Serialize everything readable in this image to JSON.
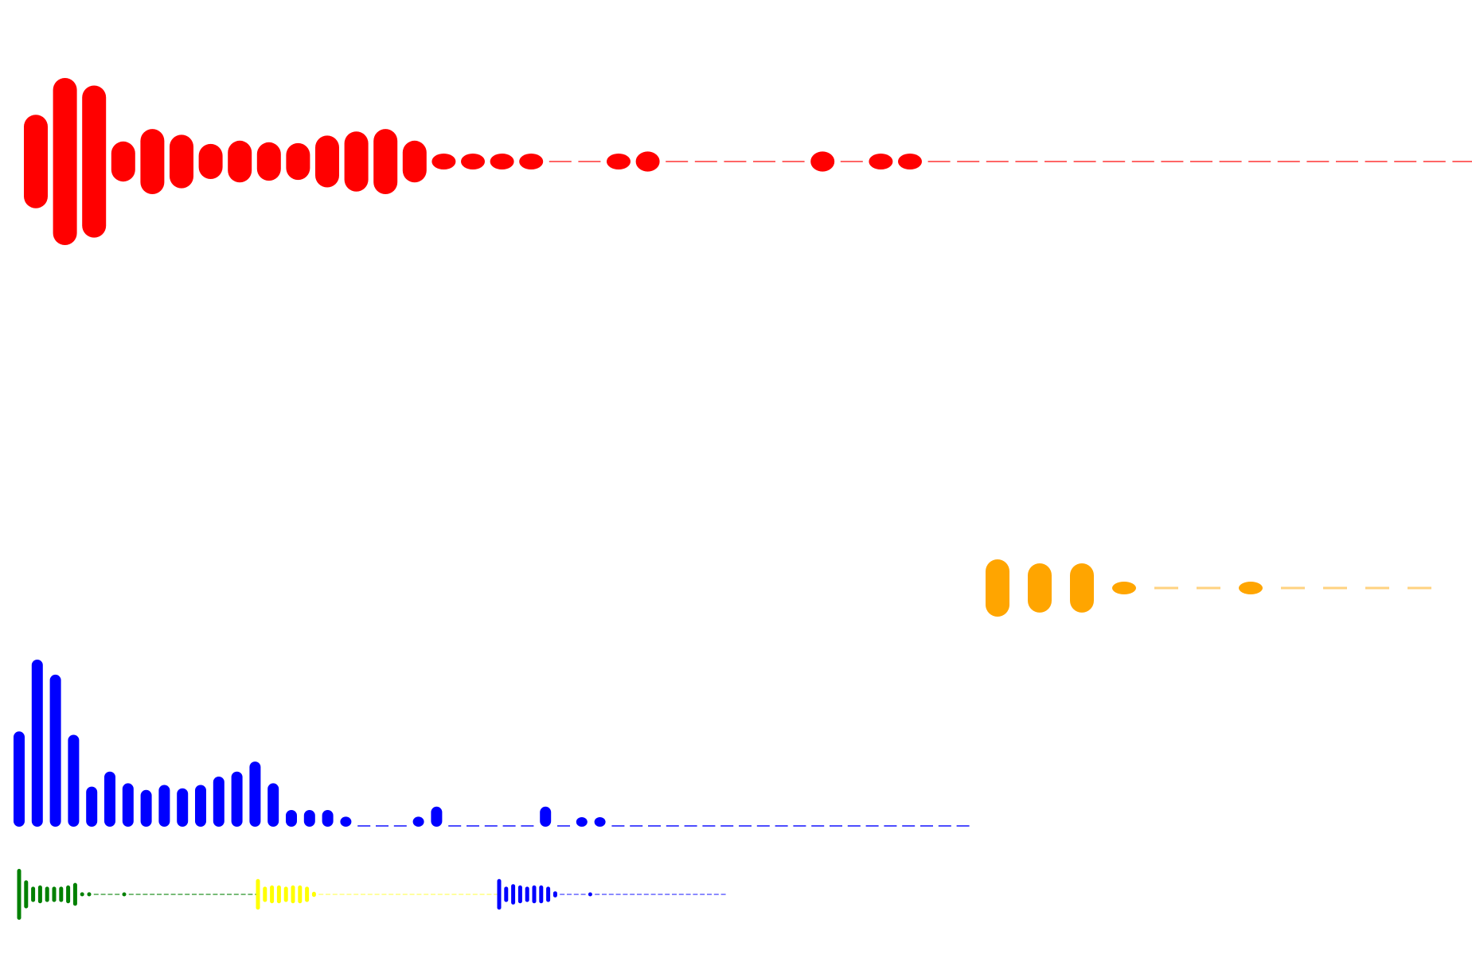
{
  "waveforms": [
    {
      "id": "red-large",
      "color": "#ff0000",
      "dash_color": "#ff6666",
      "levels": [
        0.56,
        1.0,
        0.91,
        0.24,
        0.39,
        0.32,
        0.21,
        0.25,
        0.23,
        0.22,
        0.31,
        0.36,
        0.39,
        0.25,
        0.07,
        0.07,
        0.05,
        0.04,
        0,
        0,
        0.06,
        0.12,
        0,
        0,
        0,
        0,
        0,
        0.12,
        0,
        0.05,
        0.06,
        0,
        0,
        0,
        0,
        0,
        0,
        0,
        0,
        0,
        0,
        0,
        0,
        0,
        0,
        0,
        0,
        0,
        0,
        0
      ]
    },
    {
      "id": "orange-medium",
      "color": "#ffa500",
      "dash_color": "#ffd27f",
      "levels": [
        1.0,
        0.86,
        0.86,
        0.2,
        0,
        0,
        0.1,
        0,
        0,
        0,
        0
      ]
    },
    {
      "id": "blue-bars",
      "color": "#0000ff",
      "dash_color": "#4d4dff",
      "levels": [
        0.57,
        1.0,
        0.91,
        0.55,
        0.24,
        0.33,
        0.26,
        0.22,
        0.25,
        0.23,
        0.25,
        0.3,
        0.33,
        0.39,
        0.26,
        0.1,
        0.1,
        0.1,
        0.06,
        0,
        0,
        0,
        0.06,
        0.12,
        0,
        0,
        0,
        0,
        0,
        0.12,
        0,
        0.03,
        0.03,
        0,
        0,
        0,
        0,
        0,
        0,
        0,
        0,
        0,
        0,
        0,
        0,
        0,
        0,
        0,
        0,
        0,
        0,
        0,
        0
      ]
    },
    {
      "id": "green-mini",
      "color": "#008000",
      "dash_color": "#4da64d",
      "levels": [
        1.0,
        0.55,
        0.3,
        0.35,
        0.3,
        0.3,
        0.3,
        0.35,
        0.45,
        0.08,
        0.08,
        0,
        0,
        0,
        0,
        0.05,
        0,
        0,
        0,
        0,
        0,
        0,
        0,
        0,
        0,
        0,
        0,
        0,
        0,
        0,
        0,
        0,
        0,
        0,
        0
      ]
    },
    {
      "id": "yellow-mini",
      "color": "#ffff00",
      "dash_color": "#ffff80",
      "levels": [
        0.6,
        0.3,
        0.35,
        0.35,
        0.3,
        0.35,
        0.35,
        0.3,
        0.1,
        0,
        0,
        0,
        0,
        0,
        0,
        0,
        0,
        0,
        0,
        0,
        0,
        0,
        0,
        0,
        0,
        0,
        0,
        0,
        0,
        0,
        0,
        0,
        0,
        0,
        0
      ]
    },
    {
      "id": "blue-mini",
      "color": "#0000ff",
      "dash_color": "#6666ff",
      "levels": [
        0.6,
        0.3,
        0.4,
        0.35,
        0.3,
        0.35,
        0.35,
        0.3,
        0.12,
        0,
        0,
        0,
        0,
        0.05,
        0,
        0,
        0,
        0,
        0,
        0,
        0,
        0,
        0,
        0,
        0,
        0,
        0,
        0,
        0,
        0,
        0,
        0,
        0
      ]
    }
  ]
}
